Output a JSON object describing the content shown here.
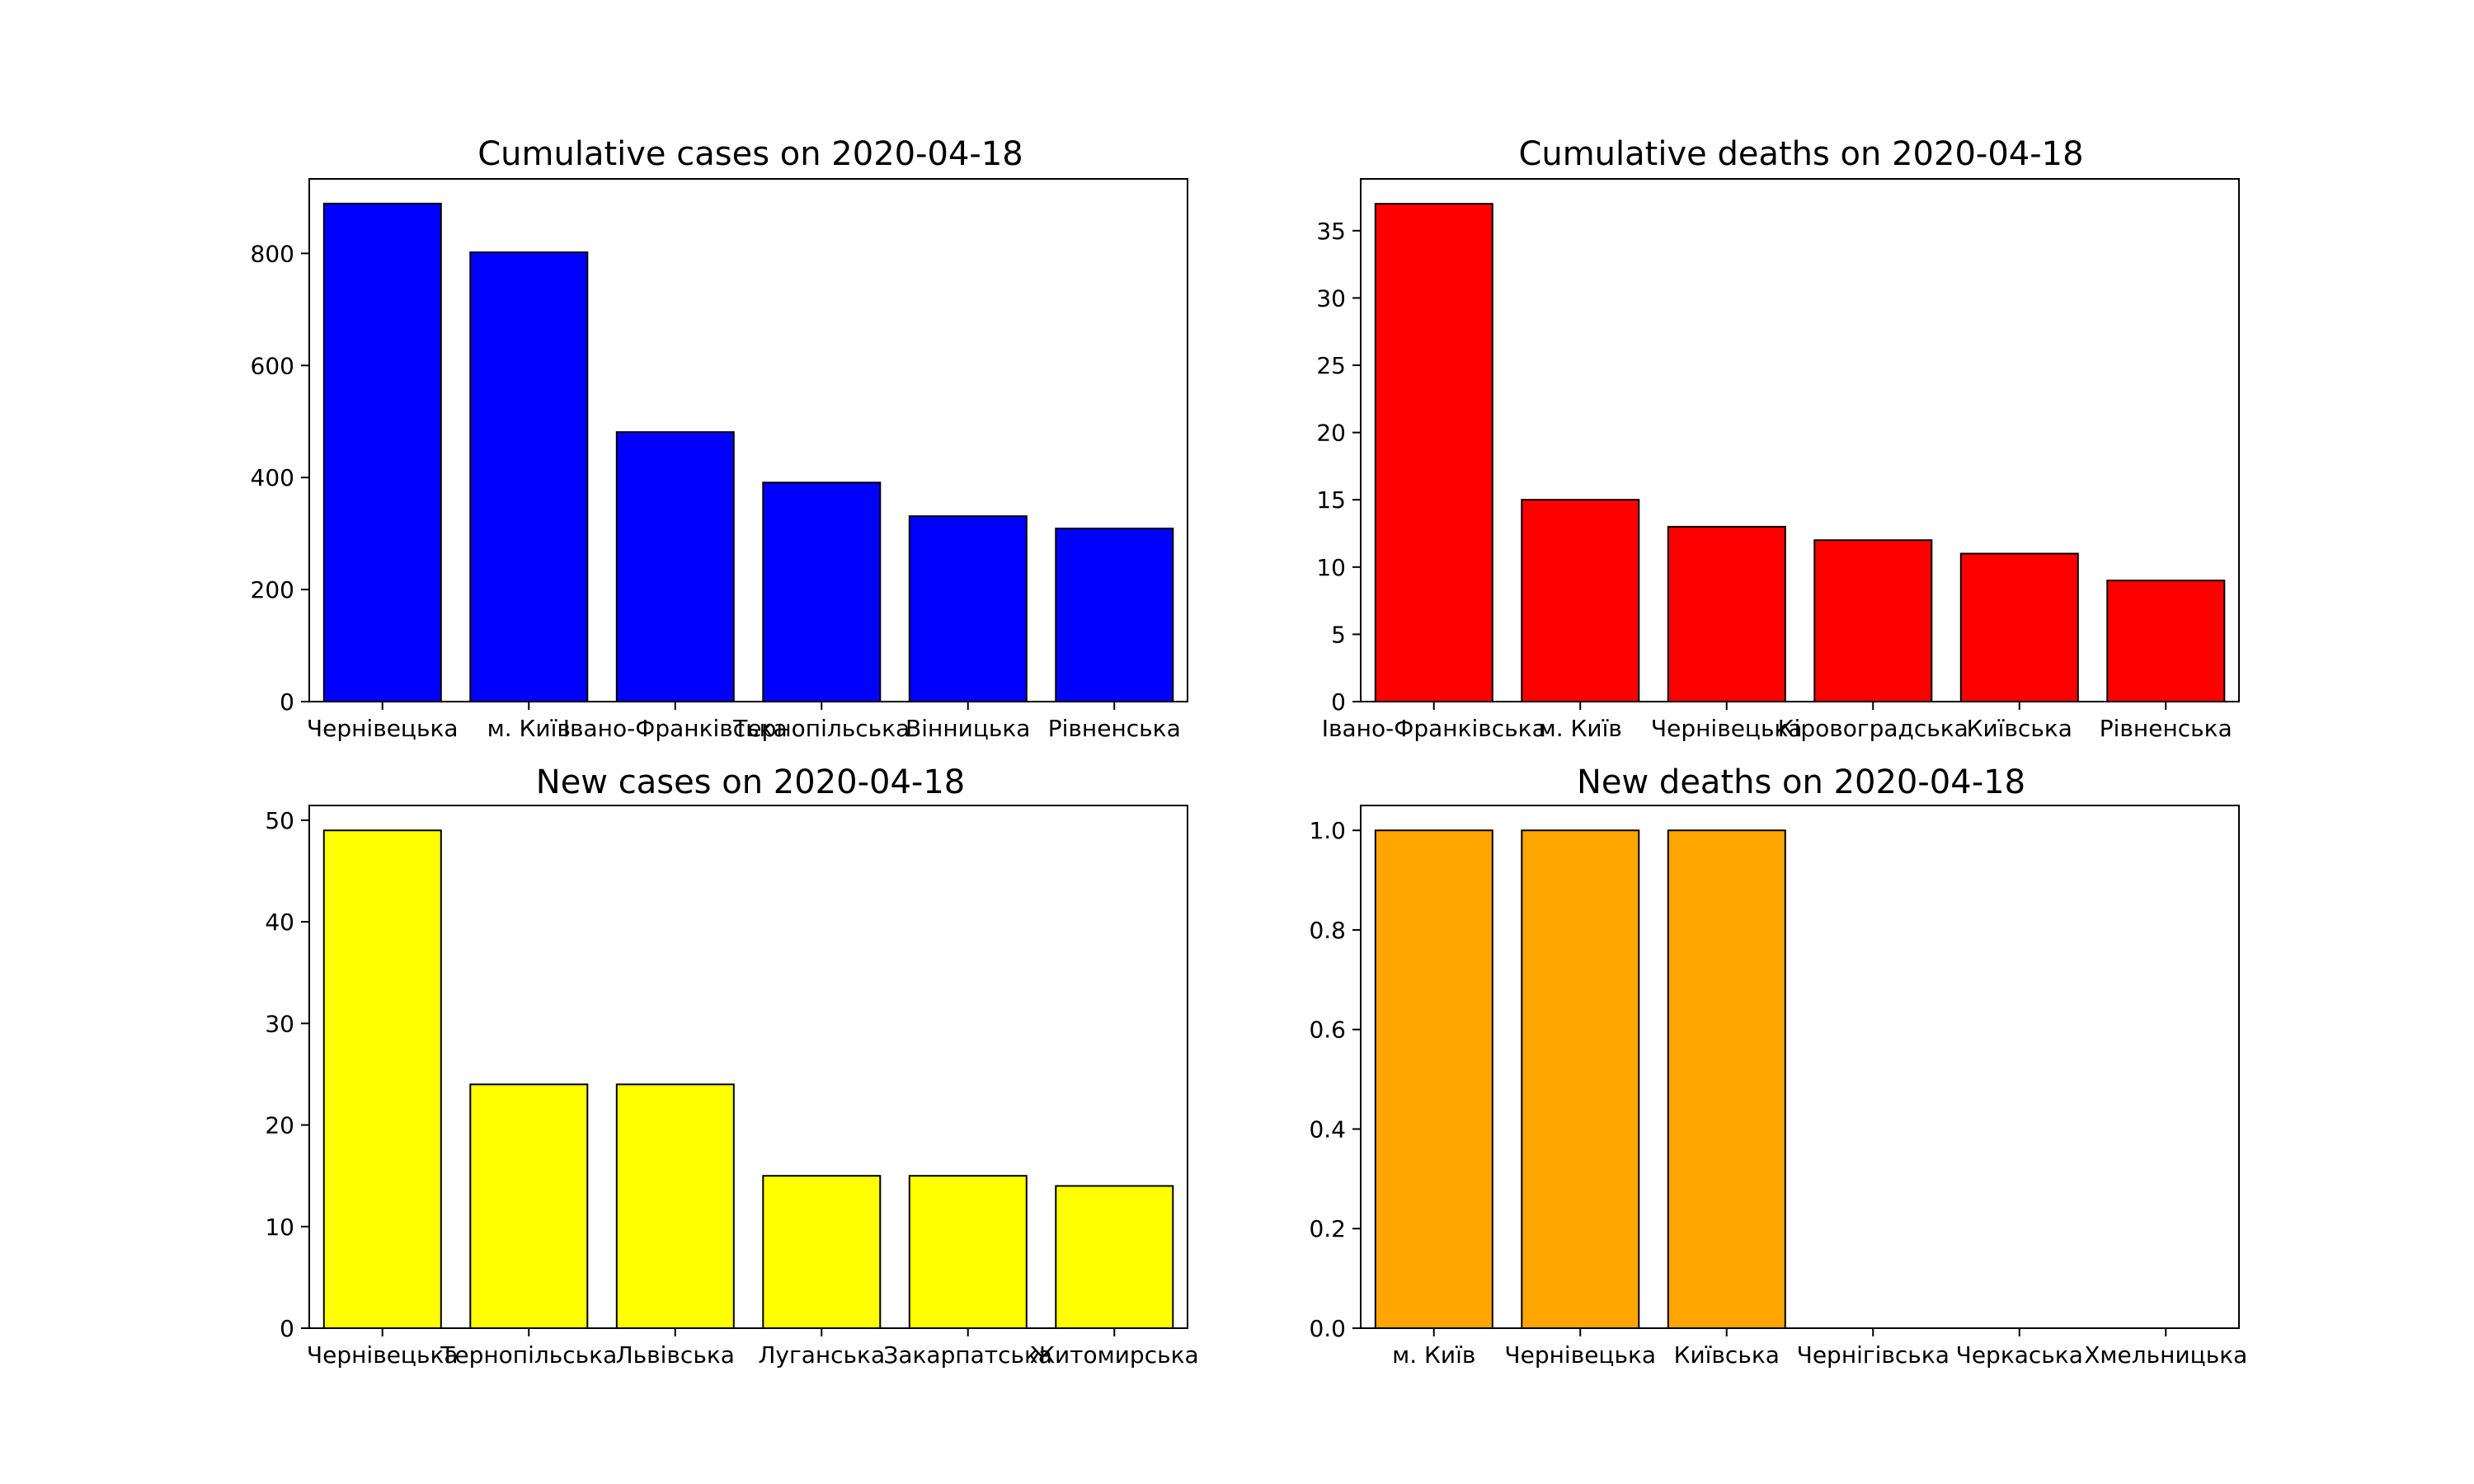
{
  "chart_data": [
    {
      "type": "bar",
      "title": "Cumulative cases on 2020-04-18",
      "categories": [
        "Чернівецька",
        "м. Київ",
        "Івано-Франківська",
        "Тернопільська",
        "Вінницька",
        "Рівненська"
      ],
      "values": [
        889,
        802,
        481,
        391,
        331,
        309
      ],
      "ylim": [
        0,
        933
      ],
      "yticks": [
        0,
        200,
        400,
        600,
        800
      ],
      "color": "#0000ff",
      "xlabel": "",
      "ylabel": ""
    },
    {
      "type": "bar",
      "title": "Cumulative deaths on 2020-04-18",
      "categories": [
        "Івано-Франківська",
        "м. Київ",
        "Чернівецька",
        "Кіровоградська",
        "Київська",
        "Рівненська"
      ],
      "values": [
        37,
        15,
        13,
        12,
        11,
        9
      ],
      "ylim": [
        0,
        38.85
      ],
      "yticks": [
        0,
        5,
        10,
        15,
        20,
        25,
        30,
        35
      ],
      "color": "#ff0000",
      "xlabel": "",
      "ylabel": ""
    },
    {
      "type": "bar",
      "title": "New cases on 2020-04-18",
      "categories": [
        "Чернівецька",
        "Тернопільська",
        "Львівська",
        "Луганська",
        "Закарпатська",
        "Житомирська"
      ],
      "values": [
        49,
        24,
        24,
        15,
        15,
        14
      ],
      "ylim": [
        0,
        51.45
      ],
      "yticks": [
        0,
        10,
        20,
        30,
        40,
        50
      ],
      "color": "#ffff00",
      "xlabel": "",
      "ylabel": ""
    },
    {
      "type": "bar",
      "title": "New deaths on 2020-04-18",
      "categories": [
        "м. Київ",
        "Чернівецька",
        "Київська",
        "Чернігівська",
        "Черкаська",
        "Хмельницька"
      ],
      "values": [
        1,
        1,
        1,
        0,
        0,
        0
      ],
      "ylim": [
        0,
        1.05
      ],
      "yticks": [
        0.0,
        0.2,
        0.4,
        0.6,
        0.8,
        1.0
      ],
      "ytick_decimals": 1,
      "color": "#ffa500",
      "xlabel": "",
      "ylabel": ""
    }
  ]
}
